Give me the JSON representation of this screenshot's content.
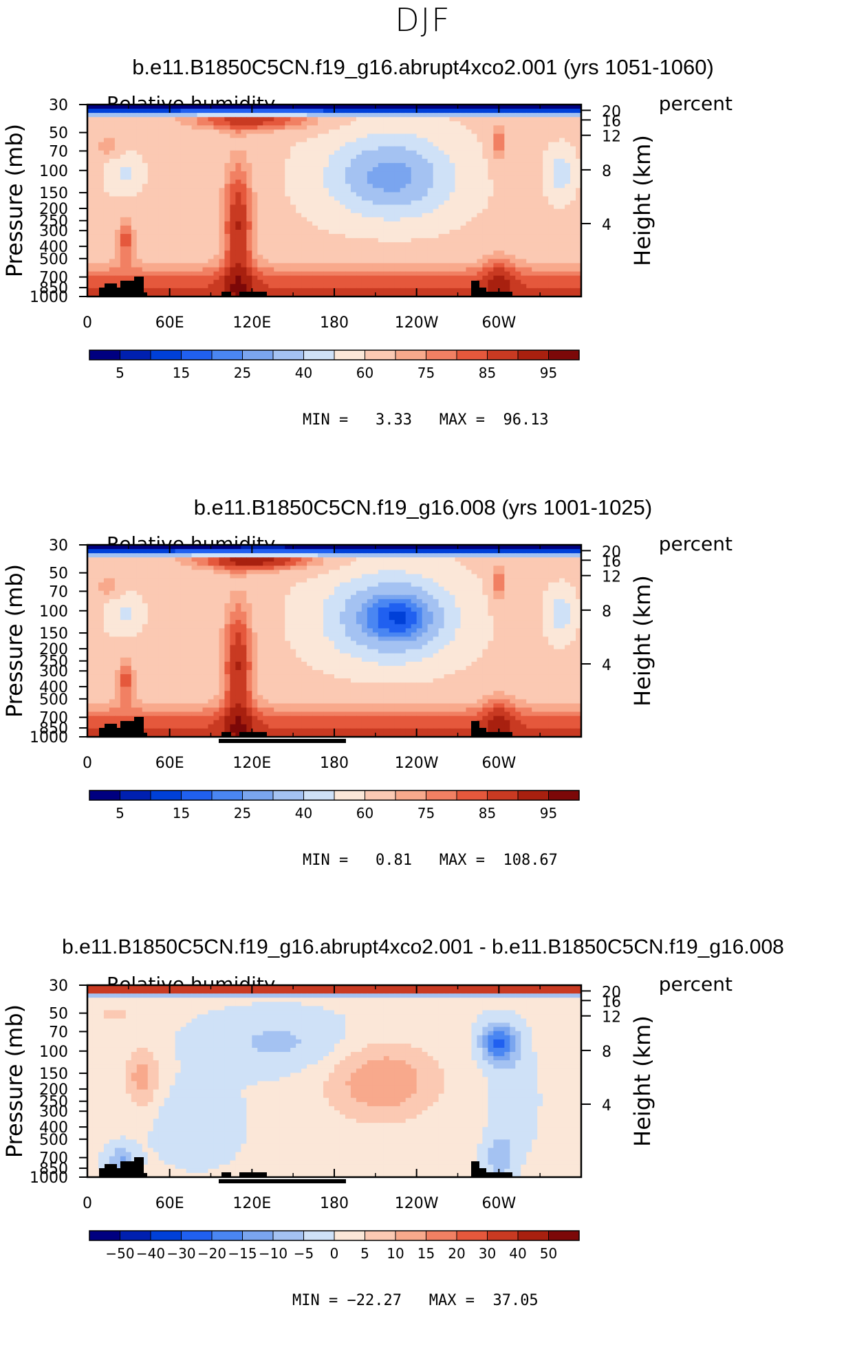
{
  "season": "DJF",
  "colors": {
    "rh_levels": [
      "#000080",
      "#0020b0",
      "#0040d8",
      "#2060f0",
      "#4a86f2",
      "#7aa5ef",
      "#a4c2f2",
      "#cfe1f7",
      "#fbe7d8",
      "#fbc9b3",
      "#f8a98c",
      "#f18063",
      "#e5583c",
      "#c93a22",
      "#a8200f",
      "#7c0808"
    ],
    "diff_levels": [
      "#000080",
      "#0020b0",
      "#0040d8",
      "#2060f0",
      "#4a86f2",
      "#7aa5ef",
      "#a4c2f2",
      "#cfe1f7",
      "#fbe7d8",
      "#fbc9b3",
      "#f8a98c",
      "#f18063",
      "#e5583c",
      "#c93a22",
      "#a8200f",
      "#7c0808"
    ],
    "land": "#000000"
  },
  "chart_data": [
    {
      "type": "heatmap",
      "title": "b.e11.B1850C5CN.f19_g16.abrupt4xco2.001 (yrs 1051-1060)",
      "left_label": "Relative humidity",
      "right_label": "percent",
      "xlabel": "",
      "ylabel": "Pressure (mb)",
      "y2label": "Height (km)",
      "x_ticks": [
        "0",
        "60E",
        "120E",
        "180",
        "120W",
        "60W"
      ],
      "y_ticks": [
        "30",
        "50",
        "70",
        "100",
        "150",
        "200",
        "250",
        "300",
        "400",
        "500",
        "700",
        "850",
        "1000"
      ],
      "y2_ticks": [
        "20",
        "16",
        "12",
        "8",
        "4"
      ],
      "min_label": "MIN =",
      "min_value": "3.33",
      "max_label": "MAX =",
      "max_value": "96.13",
      "colorbar_ticks": [
        "5",
        "15",
        "25",
        "40",
        "60",
        "75",
        "85",
        "95"
      ],
      "colorbar": "rh_levels",
      "field": "ctrl_4x"
    },
    {
      "type": "heatmap",
      "title": "b.e11.B1850C5CN.f19_g16.008 (yrs 1001-1025)",
      "left_label": "Relative humidity",
      "right_label": "percent",
      "xlabel": "",
      "ylabel": "Pressure (mb)",
      "y2label": "Height (km)",
      "x_ticks": [
        "0",
        "60E",
        "120E",
        "180",
        "120W",
        "60W"
      ],
      "y_ticks": [
        "30",
        "50",
        "70",
        "100",
        "150",
        "200",
        "250",
        "300",
        "400",
        "500",
        "700",
        "850",
        "1000"
      ],
      "y2_ticks": [
        "20",
        "16",
        "12",
        "8",
        "4"
      ],
      "min_label": "MIN =",
      "min_value": "0.81",
      "max_label": "MAX =",
      "max_value": "108.67",
      "colorbar_ticks": [
        "5",
        "15",
        "25",
        "40",
        "60",
        "75",
        "85",
        "95"
      ],
      "colorbar": "rh_levels",
      "field": "ctrl"
    },
    {
      "type": "heatmap",
      "title": "b.e11.B1850C5CN.f19_g16.abrupt4xco2.001 - b.e11.B1850C5CN.f19_g16.008",
      "left_label": "Relative humidity",
      "right_label": "percent",
      "xlabel": "",
      "ylabel": "Pressure (mb)",
      "y2label": "Height (km)",
      "x_ticks": [
        "0",
        "60E",
        "120E",
        "180",
        "120W",
        "60W"
      ],
      "y_ticks": [
        "30",
        "50",
        "70",
        "100",
        "150",
        "200",
        "250",
        "300",
        "400",
        "500",
        "700",
        "850",
        "1000"
      ],
      "y2_ticks": [
        "20",
        "16",
        "12",
        "8",
        "4"
      ],
      "min_label": "MIN =",
      "min_value": "−22.27",
      "max_label": "MAX =",
      "max_value": "37.05",
      "colorbar_ticks": [
        "−50",
        "−40",
        "−30",
        "−20",
        "−15",
        "−10",
        "−5",
        "0",
        "5",
        "10",
        "15",
        "20",
        "30",
        "40",
        "50"
      ],
      "colorbar": "diff_levels",
      "field": "diff"
    }
  ]
}
